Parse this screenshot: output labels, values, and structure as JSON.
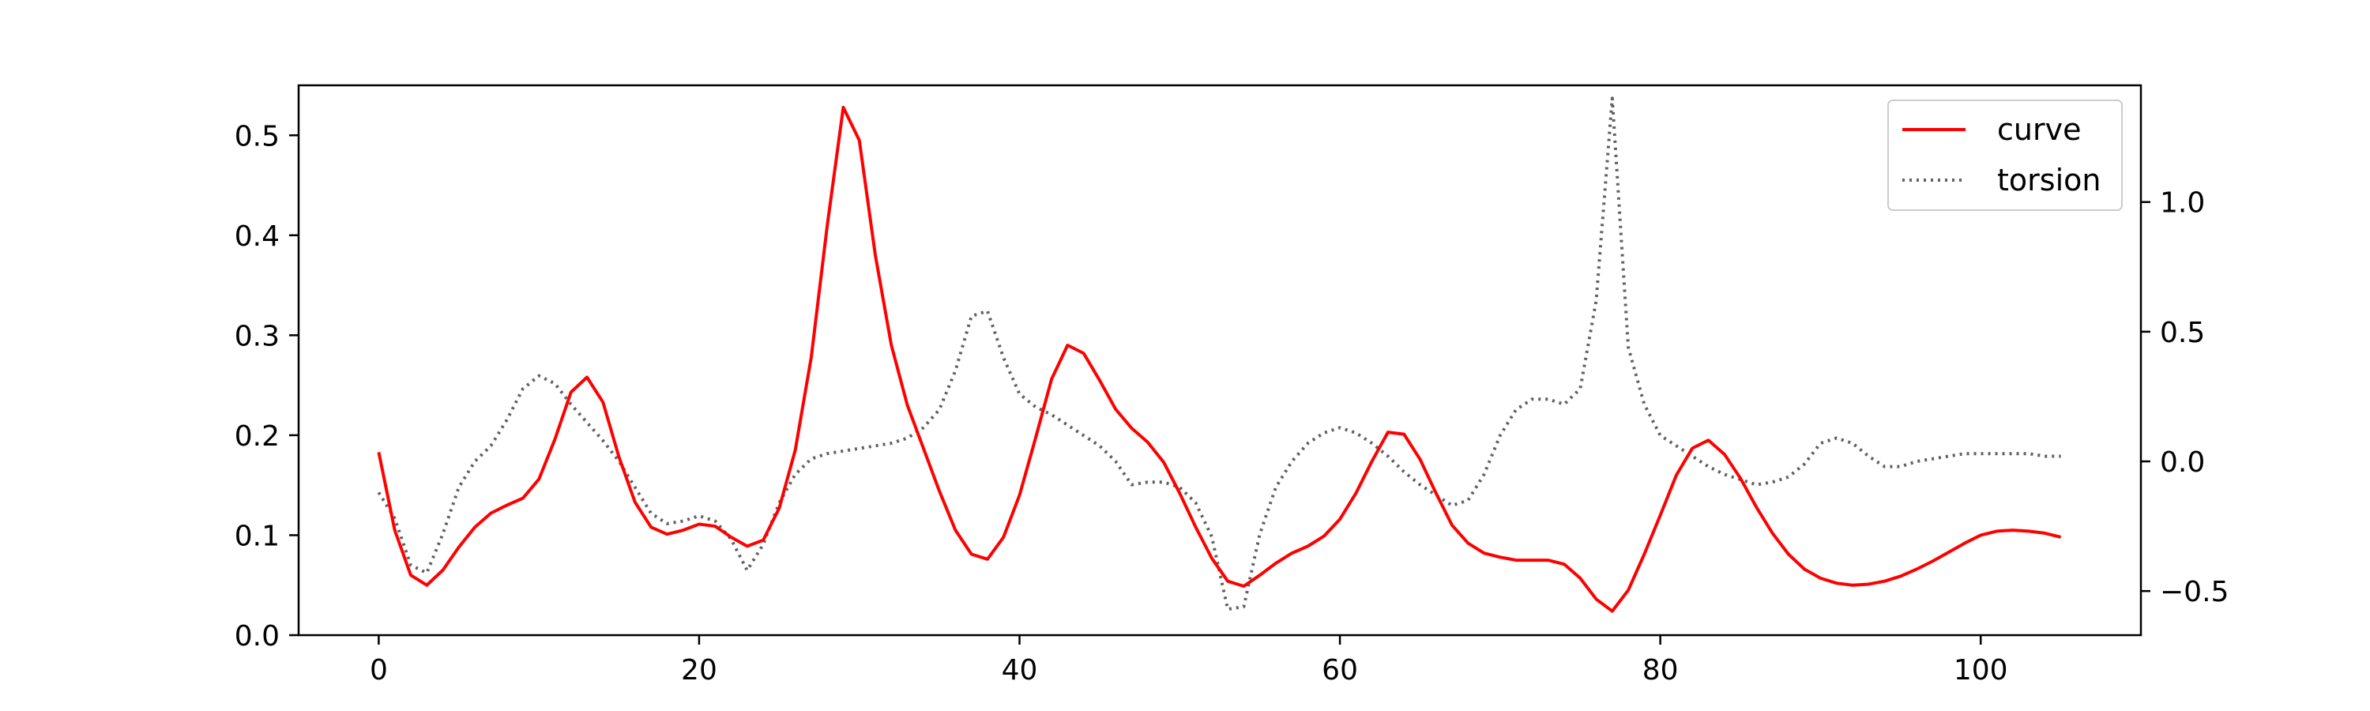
{
  "chart_data": {
    "type": "line",
    "title": "",
    "xlabel": "",
    "ylabel": "",
    "xlim": [
      -5,
      110
    ],
    "ylim_left": [
      0,
      0.55
    ],
    "ylim_right": [
      -0.67,
      1.45
    ],
    "x_ticks": [
      0,
      20,
      40,
      60,
      80,
      100
    ],
    "x_tick_labels": [
      "0",
      "20",
      "40",
      "60",
      "80",
      "100"
    ],
    "y_left_ticks": [
      0.0,
      0.1,
      0.2,
      0.3,
      0.4,
      0.5
    ],
    "y_left_tick_labels": [
      "0.0",
      "0.1",
      "0.2",
      "0.3",
      "0.4",
      "0.5"
    ],
    "y_right_ticks": [
      -0.5,
      0.0,
      0.5,
      1.0
    ],
    "y_right_tick_labels": [
      "−0.5",
      "0.0",
      "0.5",
      "1.0"
    ],
    "grid": false,
    "legend_position": "top-right",
    "series": [
      {
        "name": "curve",
        "axis": "left",
        "color": "#ff0000",
        "style": "solid",
        "x": [
          0,
          1,
          2,
          3,
          4,
          5,
          6,
          7,
          8,
          9,
          10,
          11,
          12,
          13,
          14,
          15,
          16,
          17,
          18,
          19,
          20,
          21,
          22,
          23,
          24,
          25,
          26,
          27,
          28,
          29,
          30,
          31,
          32,
          33,
          34,
          35,
          36,
          37,
          38,
          39,
          40,
          41,
          42,
          43,
          44,
          45,
          46,
          47,
          48,
          49,
          50,
          51,
          52,
          53,
          54,
          55,
          56,
          57,
          58,
          59,
          60,
          61,
          62,
          63,
          64,
          65,
          66,
          67,
          68,
          69,
          70,
          71,
          72,
          73,
          74,
          75,
          76,
          77,
          78,
          79,
          80,
          81,
          82,
          83,
          84,
          85,
          86,
          87,
          88,
          89,
          90,
          91,
          92,
          93,
          94,
          95,
          96,
          97,
          98,
          99,
          100,
          101,
          102,
          103,
          104,
          105
        ],
        "y": [
          0.183,
          0.105,
          0.06,
          0.05,
          0.065,
          0.088,
          0.108,
          0.122,
          0.13,
          0.137,
          0.156,
          0.196,
          0.243,
          0.258,
          0.233,
          0.178,
          0.133,
          0.108,
          0.101,
          0.105,
          0.111,
          0.109,
          0.098,
          0.089,
          0.095,
          0.127,
          0.185,
          0.278,
          0.41,
          0.528,
          0.495,
          0.38,
          0.29,
          0.23,
          0.187,
          0.144,
          0.105,
          0.081,
          0.076,
          0.098,
          0.14,
          0.197,
          0.256,
          0.29,
          0.282,
          0.255,
          0.226,
          0.207,
          0.193,
          0.173,
          0.142,
          0.108,
          0.077,
          0.054,
          0.049,
          0.06,
          0.072,
          0.082,
          0.089,
          0.099,
          0.116,
          0.142,
          0.174,
          0.203,
          0.201,
          0.176,
          0.142,
          0.11,
          0.092,
          0.082,
          0.078,
          0.075,
          0.075,
          0.075,
          0.071,
          0.057,
          0.036,
          0.024,
          0.045,
          0.081,
          0.12,
          0.16,
          0.187,
          0.195,
          0.181,
          0.157,
          0.128,
          0.102,
          0.081,
          0.066,
          0.057,
          0.052,
          0.05,
          0.051,
          0.054,
          0.059,
          0.066,
          0.074,
          0.083,
          0.092,
          0.1,
          0.104,
          0.105,
          0.104,
          0.102,
          0.098
        ]
      },
      {
        "name": "torsion",
        "axis": "right",
        "color": "#606060",
        "style": "dotted",
        "x": [
          0,
          1,
          2,
          3,
          4,
          5,
          6,
          7,
          8,
          9,
          10,
          11,
          12,
          13,
          14,
          15,
          16,
          17,
          18,
          19,
          20,
          21,
          22,
          23,
          24,
          25,
          26,
          27,
          28,
          29,
          30,
          31,
          32,
          33,
          34,
          35,
          36,
          37,
          38,
          39,
          40,
          41,
          42,
          43,
          44,
          45,
          46,
          47,
          48,
          49,
          50,
          51,
          52,
          53,
          54,
          55,
          56,
          57,
          58,
          59,
          60,
          61,
          62,
          63,
          64,
          65,
          66,
          67,
          68,
          69,
          70,
          71,
          72,
          73,
          74,
          75,
          76,
          77,
          78,
          79,
          80,
          81,
          82,
          83,
          84,
          85,
          86,
          87,
          88,
          89,
          90,
          91,
          92,
          93,
          94,
          95,
          96,
          97,
          98,
          99,
          100,
          101,
          102,
          103,
          104,
          105
        ],
        "y": [
          -0.12,
          -0.22,
          -0.4,
          -0.43,
          -0.28,
          -0.1,
          0.0,
          0.06,
          0.16,
          0.28,
          0.33,
          0.3,
          0.22,
          0.15,
          0.08,
          0.0,
          -0.1,
          -0.2,
          -0.24,
          -0.23,
          -0.21,
          -0.23,
          -0.3,
          -0.42,
          -0.32,
          -0.16,
          -0.05,
          0.01,
          0.03,
          0.04,
          0.05,
          0.06,
          0.07,
          0.09,
          0.13,
          0.2,
          0.35,
          0.56,
          0.58,
          0.4,
          0.26,
          0.21,
          0.18,
          0.14,
          0.1,
          0.06,
          0.0,
          -0.09,
          -0.08,
          -0.08,
          -0.1,
          -0.16,
          -0.29,
          -0.57,
          -0.56,
          -0.28,
          -0.1,
          0.0,
          0.07,
          0.11,
          0.13,
          0.11,
          0.07,
          0.02,
          -0.04,
          -0.09,
          -0.13,
          -0.17,
          -0.15,
          -0.05,
          0.1,
          0.2,
          0.24,
          0.24,
          0.22,
          0.28,
          0.62,
          1.4,
          0.44,
          0.22,
          0.1,
          0.06,
          0.02,
          -0.02,
          -0.05,
          -0.07,
          -0.09,
          -0.08,
          -0.06,
          -0.01,
          0.07,
          0.09,
          0.07,
          0.02,
          -0.02,
          -0.02,
          0.0,
          0.01,
          0.02,
          0.03,
          0.03,
          0.03,
          0.03,
          0.03,
          0.02,
          0.02
        ]
      }
    ]
  }
}
